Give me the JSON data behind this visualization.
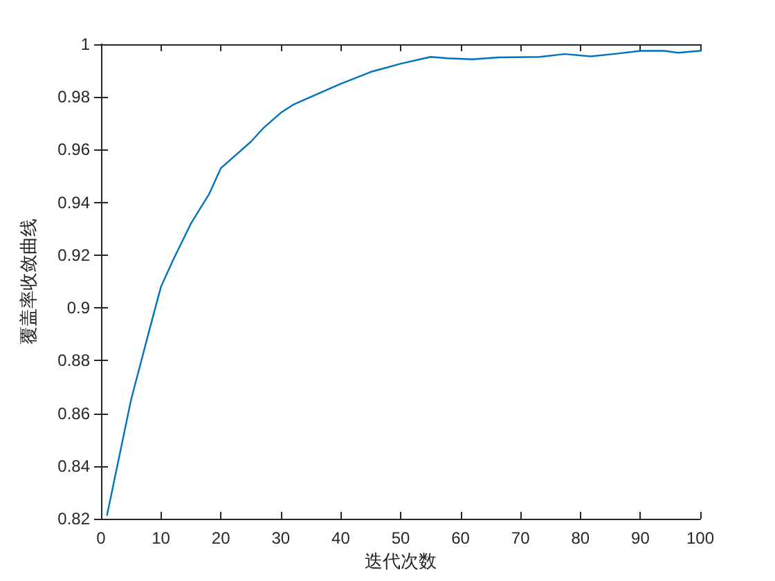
{
  "chart_data": {
    "type": "line",
    "xlabel": "迭代次数",
    "ylabel": "覆盖率收敛曲线",
    "x": [
      1,
      5,
      8,
      10,
      12,
      15,
      18,
      20,
      22,
      25,
      27,
      30,
      32,
      35,
      40,
      45,
      50,
      55,
      57.8,
      62,
      66.3,
      73.2,
      77.4,
      81.7,
      85.5,
      90.1,
      94,
      96.3,
      100
    ],
    "series": [
      {
        "color": "#0072bd",
        "values": [
          0.8214,
          0.865,
          0.891,
          0.908,
          0.918,
          0.932,
          0.943,
          0.953,
          0.957,
          0.963,
          0.968,
          0.974,
          0.977,
          0.98,
          0.985,
          0.9895,
          0.9926,
          0.9952,
          0.9947,
          0.9943,
          0.995,
          0.9952,
          0.9963,
          0.9954,
          0.9963,
          0.9975,
          0.9975,
          0.9968,
          0.9975
        ]
      }
    ],
    "xlim": [
      0,
      100
    ],
    "xticks": [
      0,
      10,
      20,
      30,
      40,
      50,
      60,
      70,
      80,
      90,
      100
    ],
    "ylim": [
      0.82,
      1
    ],
    "yticks": [
      0.82,
      0.84,
      0.86,
      0.88,
      0.9,
      0.92,
      0.94,
      0.96,
      0.98,
      1
    ],
    "grid": false,
    "marker": "none",
    "line_style": "solid"
  }
}
